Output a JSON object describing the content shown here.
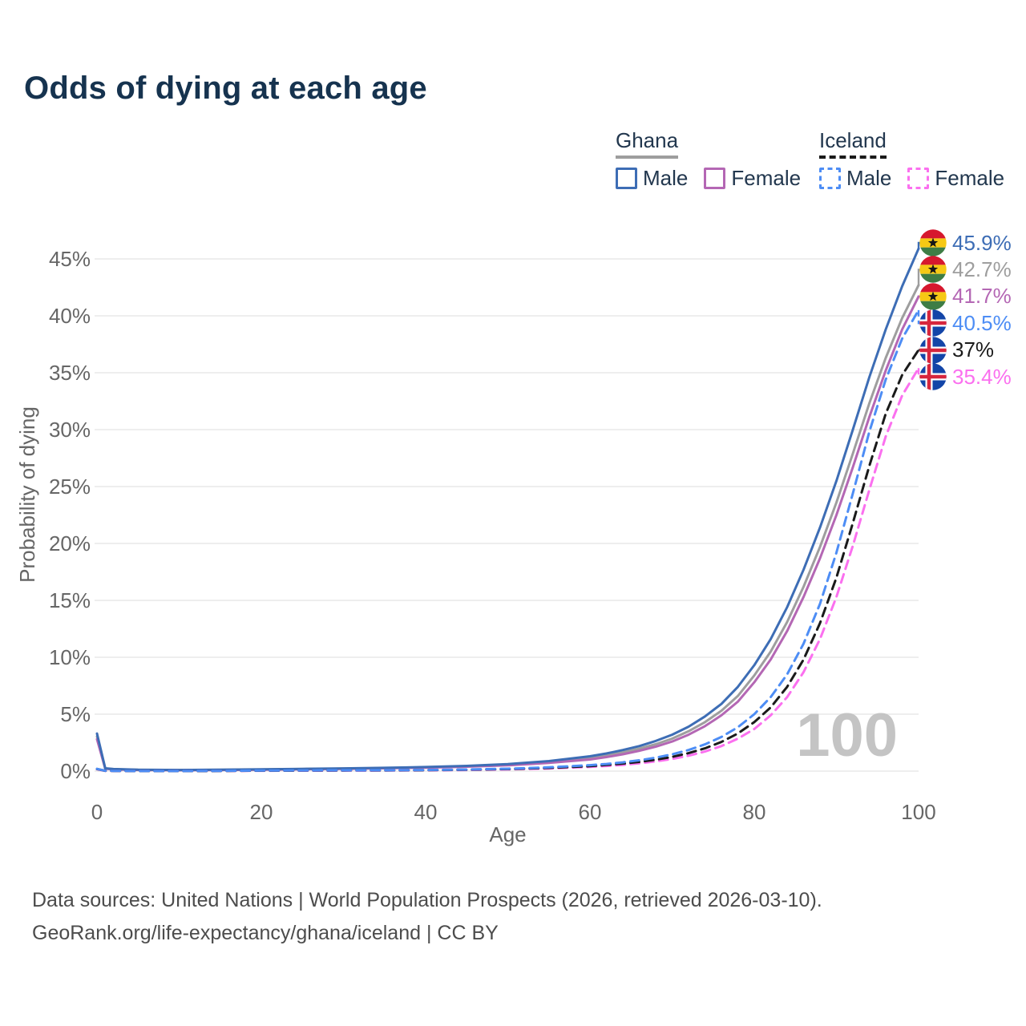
{
  "title": "Odds of dying at each age",
  "watermark": "100",
  "legend": {
    "groups": [
      {
        "label": "Ghana",
        "underline_style": "solid",
        "underline_color": "#9e9e9e",
        "items": [
          {
            "label": "Male",
            "color": "#3d6db5",
            "dashed": false
          },
          {
            "label": "Female",
            "color": "#b467b4",
            "dashed": false
          }
        ]
      },
      {
        "label": "Iceland",
        "underline_style": "dashed",
        "underline_color": "#1a1a1a",
        "items": [
          {
            "label": "Male",
            "color": "#4d8df5",
            "dashed": true
          },
          {
            "label": "Female",
            "color": "#fb70ef",
            "dashed": true
          }
        ]
      }
    ]
  },
  "footer": {
    "line1": "Data sources: United Nations | World Population Prospects (2026, retrieved 2026-03-10).",
    "line2": "GeoRank.org/life-expectancy/ghana/iceland | CC BY"
  },
  "chart_data": {
    "type": "line",
    "title": "Odds of dying at each age",
    "xlabel": "Age",
    "ylabel": "Probability of dying",
    "xlim": [
      0,
      100
    ],
    "ylim_percent": [
      0,
      46
    ],
    "x_ticks": [
      0,
      20,
      40,
      60,
      80,
      100
    ],
    "y_ticks_percent": [
      0,
      5,
      10,
      15,
      20,
      25,
      30,
      35,
      40,
      45
    ],
    "y_tick_labels": [
      "0%",
      "5%",
      "10%",
      "15%",
      "20%",
      "25%",
      "30%",
      "35%",
      "40%",
      "45%"
    ],
    "grid": "horizontal-only",
    "legend_position": "top-right",
    "ages": [
      0,
      1,
      2,
      5,
      10,
      15,
      20,
      25,
      30,
      35,
      40,
      45,
      50,
      55,
      60,
      62,
      64,
      66,
      68,
      70,
      72,
      74,
      76,
      78,
      80,
      82,
      84,
      86,
      88,
      90,
      92,
      94,
      96,
      98,
      100
    ],
    "series": [
      {
        "key": "ghana-male",
        "name": "Ghana — Male",
        "flag": "ghana",
        "flag_icon": "ghana-flag-icon",
        "style": "solid",
        "color": "#3d6db5",
        "end_label": "45.9%",
        "values": [
          3.3,
          0.25,
          0.18,
          0.12,
          0.1,
          0.12,
          0.16,
          0.2,
          0.24,
          0.29,
          0.36,
          0.46,
          0.62,
          0.88,
          1.3,
          1.55,
          1.85,
          2.2,
          2.65,
          3.2,
          3.9,
          4.8,
          5.9,
          7.4,
          9.3,
          11.6,
          14.4,
          17.7,
          21.4,
          25.5,
          30.0,
          34.6,
          38.8,
          42.6,
          45.9
        ]
      },
      {
        "key": "ghana-both",
        "name": "Ghana — Both sexes",
        "flag": "ghana",
        "flag_icon": "ghana-flag-icon",
        "style": "solid",
        "color": "#9e9e9e",
        "end_label": "42.7%",
        "values": [
          3.05,
          0.23,
          0.17,
          0.11,
          0.09,
          0.11,
          0.14,
          0.18,
          0.22,
          0.27,
          0.33,
          0.42,
          0.56,
          0.79,
          1.15,
          1.38,
          1.65,
          1.97,
          2.36,
          2.85,
          3.5,
          4.3,
          5.3,
          6.6,
          8.4,
          10.5,
          13.1,
          16.2,
          19.7,
          23.6,
          27.9,
          32.3,
          36.3,
          39.8,
          42.7
        ]
      },
      {
        "key": "ghana-female",
        "name": "Ghana — Female",
        "flag": "ghana",
        "flag_icon": "ghana-flag-icon",
        "style": "solid",
        "color": "#b467b4",
        "end_label": "41.7%",
        "values": [
          2.8,
          0.21,
          0.15,
          0.1,
          0.08,
          0.1,
          0.13,
          0.16,
          0.2,
          0.25,
          0.3,
          0.39,
          0.51,
          0.72,
          1.02,
          1.23,
          1.48,
          1.78,
          2.14,
          2.6,
          3.2,
          3.95,
          4.9,
          6.1,
          7.8,
          9.8,
          12.3,
          15.3,
          18.7,
          22.5,
          26.7,
          31.1,
          35.2,
          38.8,
          41.7
        ]
      },
      {
        "key": "iceland-male",
        "name": "Iceland — Male",
        "flag": "iceland",
        "flag_icon": "iceland-flag-icon",
        "style": "dashed",
        "color": "#4d8df5",
        "end_label": "40.5%",
        "values": [
          0.2,
          0.03,
          0.02,
          0.01,
          0.01,
          0.02,
          0.05,
          0.06,
          0.07,
          0.08,
          0.1,
          0.14,
          0.21,
          0.33,
          0.52,
          0.63,
          0.77,
          0.95,
          1.18,
          1.47,
          1.85,
          2.35,
          3.0,
          3.85,
          5.0,
          6.5,
          8.5,
          11.2,
          14.7,
          19.2,
          24.4,
          29.8,
          34.4,
          38.0,
          40.5
        ]
      },
      {
        "key": "iceland-both",
        "name": "Iceland — Both sexes",
        "flag": "iceland",
        "flag_icon": "iceland-flag-icon",
        "style": "dashed",
        "color": "#1a1a1a",
        "end_label": "37%",
        "values": [
          0.18,
          0.025,
          0.018,
          0.01,
          0.01,
          0.015,
          0.04,
          0.05,
          0.055,
          0.065,
          0.085,
          0.12,
          0.18,
          0.28,
          0.44,
          0.54,
          0.66,
          0.81,
          1.0,
          1.25,
          1.58,
          2.0,
          2.56,
          3.3,
          4.3,
          5.6,
          7.4,
          9.8,
          13.0,
          17.0,
          21.8,
          26.8,
          31.4,
          34.8,
          37.0
        ]
      },
      {
        "key": "iceland-female",
        "name": "Iceland — Female",
        "flag": "iceland",
        "flag_icon": "iceland-flag-icon",
        "style": "dashed",
        "color": "#fb70ef",
        "end_label": "35.4%",
        "values": [
          0.16,
          0.02,
          0.015,
          0.01,
          0.01,
          0.012,
          0.03,
          0.035,
          0.04,
          0.05,
          0.07,
          0.1,
          0.15,
          0.23,
          0.37,
          0.45,
          0.55,
          0.68,
          0.85,
          1.06,
          1.35,
          1.72,
          2.2,
          2.85,
          3.7,
          4.9,
          6.5,
          8.7,
          11.6,
          15.3,
          19.8,
          24.7,
          29.4,
          33.0,
          35.4
        ]
      }
    ]
  }
}
